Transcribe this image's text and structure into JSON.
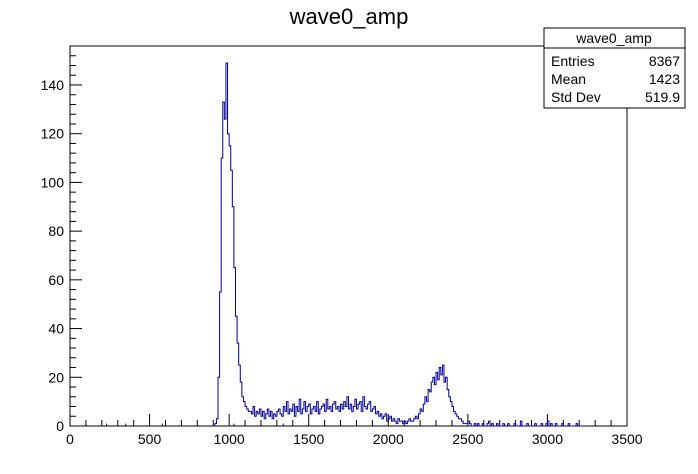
{
  "chart_data": {
    "type": "bar",
    "title": "wave0_amp",
    "xlabel": "",
    "ylabel": "",
    "xlim": [
      0,
      3500
    ],
    "ylim": [
      0,
      156
    ],
    "grid": false,
    "x_ticks": [
      "0",
      "500",
      "1000",
      "1500",
      "2000",
      "2500",
      "3000",
      "3500"
    ],
    "y_ticks": [
      "0",
      "20",
      "40",
      "60",
      "80",
      "100",
      "120",
      "140"
    ],
    "bin_width": 10,
    "bin_start": [
      900,
      910,
      920,
      930,
      940,
      950,
      960,
      970,
      980,
      990,
      1000,
      1010,
      1020,
      1030,
      1040,
      1050,
      1060,
      1070,
      1080,
      1090,
      1100,
      1110,
      1120,
      1130,
      1140,
      1150,
      1160,
      1170,
      1180,
      1190,
      1200,
      1210,
      1220,
      1230,
      1240,
      1250,
      1260,
      1270,
      1280,
      1290,
      1300,
      1310,
      1320,
      1330,
      1340,
      1350,
      1360,
      1370,
      1380,
      1390,
      1400,
      1410,
      1420,
      1430,
      1440,
      1450,
      1460,
      1470,
      1480,
      1490,
      1500,
      1510,
      1520,
      1530,
      1540,
      1550,
      1560,
      1570,
      1580,
      1590,
      1600,
      1610,
      1620,
      1630,
      1640,
      1650,
      1660,
      1670,
      1680,
      1690,
      1700,
      1710,
      1720,
      1730,
      1740,
      1750,
      1760,
      1770,
      1780,
      1790,
      1800,
      1810,
      1820,
      1830,
      1840,
      1850,
      1860,
      1870,
      1880,
      1890,
      1900,
      1910,
      1920,
      1930,
      1940,
      1950,
      1960,
      1970,
      1980,
      1990,
      2000,
      2010,
      2020,
      2030,
      2040,
      2050,
      2060,
      2070,
      2080,
      2090,
      2100,
      2110,
      2120,
      2130,
      2140,
      2150,
      2160,
      2170,
      2180,
      2190,
      2200,
      2210,
      2220,
      2230,
      2240,
      2250,
      2260,
      2270,
      2280,
      2290,
      2300,
      2310,
      2320,
      2330,
      2340,
      2350,
      2360,
      2370,
      2380,
      2390,
      2400,
      2410,
      2420,
      2430,
      2440,
      2450,
      2460,
      2470,
      2480,
      2490,
      2500,
      2510,
      2520,
      2530,
      2540,
      2550,
      2560,
      2570,
      2580,
      2590,
      2600,
      2610,
      2620,
      2630,
      2640,
      2650,
      2660,
      2670,
      2680,
      2690,
      2700,
      2710,
      2720,
      2730,
      2740,
      2750,
      2760,
      2770,
      2780,
      2790,
      2800,
      2810,
      2820,
      2830,
      2840,
      2850,
      2860,
      2870,
      2880,
      2890,
      2900,
      2910,
      2920,
      2930,
      2940,
      2950,
      2960,
      2970,
      2980,
      2990,
      3000,
      3010,
      3020,
      3030,
      3040,
      3050,
      3060,
      3070,
      3080,
      3090,
      3100,
      3110,
      3120,
      3130,
      3140,
      3150,
      3160,
      3170,
      3180,
      3190,
      3200,
      3210,
      3220,
      3230,
      3240,
      3250,
      3260,
      3270,
      3280,
      3290,
      3300,
      3310,
      3320,
      3330,
      3340,
      3350,
      3360,
      3370,
      3380,
      3390
    ],
    "values": [
      0,
      1,
      3,
      20,
      55,
      110,
      133,
      126,
      149,
      120,
      115,
      105,
      90,
      65,
      45,
      34,
      25,
      18,
      12,
      10,
      8,
      7,
      6,
      6,
      5,
      8,
      4,
      6,
      5,
      7,
      4,
      6,
      3,
      5,
      7,
      4,
      6,
      3,
      5,
      4,
      6,
      7,
      5,
      4,
      8,
      6,
      10,
      5,
      7,
      6,
      9,
      4,
      8,
      6,
      11,
      5,
      7,
      10,
      6,
      8,
      9,
      5,
      7,
      8,
      6,
      10,
      5,
      7,
      8,
      9,
      6,
      11,
      7,
      8,
      6,
      9,
      10,
      7,
      8,
      6,
      9,
      7,
      10,
      8,
      12,
      7,
      9,
      6,
      8,
      11,
      7,
      9,
      10,
      6,
      12,
      8,
      7,
      9,
      10,
      6,
      7,
      8,
      5,
      6,
      4,
      5,
      3,
      4,
      5,
      2,
      3,
      4,
      2,
      3,
      2,
      1,
      3,
      2,
      2,
      1,
      2,
      1,
      2,
      3,
      2,
      2,
      3,
      4,
      3,
      5,
      7,
      6,
      9,
      12,
      10,
      15,
      14,
      18,
      20,
      17,
      22,
      19,
      24,
      21,
      25,
      18,
      20,
      15,
      12,
      10,
      8,
      6,
      5,
      4,
      3,
      3,
      2,
      1,
      1,
      1,
      2,
      1,
      0,
      0,
      1,
      0,
      1,
      0,
      0,
      1,
      0,
      0,
      1,
      2,
      0,
      1,
      0,
      0,
      1,
      0,
      0,
      0,
      1,
      0,
      0,
      1,
      0,
      0,
      0,
      1,
      0,
      0,
      0,
      2,
      0,
      0,
      0,
      1,
      0,
      0,
      0,
      0,
      1,
      0,
      0,
      0,
      1,
      0,
      0,
      1,
      2,
      0,
      1,
      0,
      0,
      1,
      0,
      0,
      0,
      1,
      0,
      0,
      0,
      1,
      0,
      0,
      0,
      0,
      1,
      0,
      0,
      0,
      0,
      0
    ],
    "isolated_entries": [
      [
        0,
        0
      ],
      [
        100,
        1
      ],
      [
        230,
        1
      ],
      [
        350,
        1
      ],
      [
        580,
        1
      ],
      [
        1030,
        1
      ],
      [
        1340,
        1
      ]
    ],
    "stats": {
      "title": "wave0_amp",
      "rows": [
        {
          "label": "Entries",
          "value": "8367"
        },
        {
          "label": "Mean",
          "value": "1423"
        },
        {
          "label": "Std Dev",
          "value": "519.9"
        }
      ]
    },
    "line_color": "#000099"
  }
}
